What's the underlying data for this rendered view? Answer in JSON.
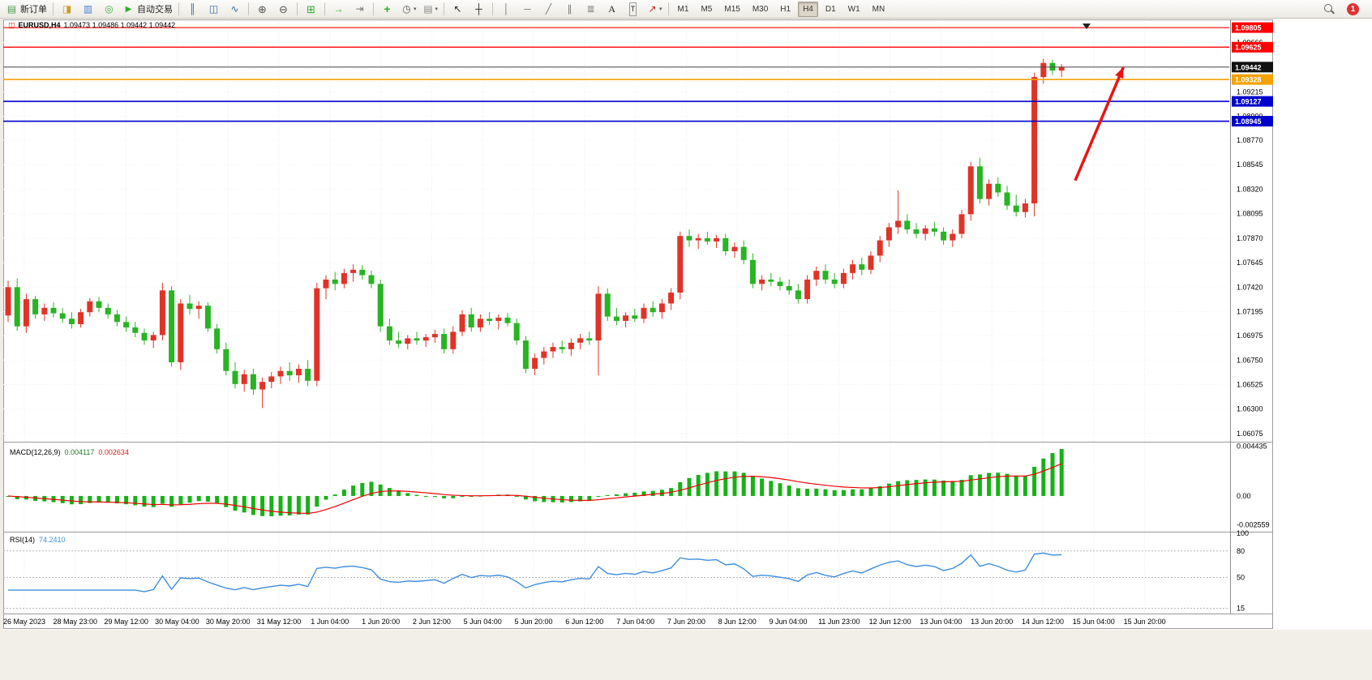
{
  "window": {
    "symbol_period": "EURUSD,H4",
    "ohlc": "1.09473 1.09486 1.09442 1.09442"
  },
  "toolbar": {
    "new_order_label": "新订单",
    "autotrade_label": "自动交易",
    "timeframes": [
      "M1",
      "M5",
      "M15",
      "M30",
      "H1",
      "H4",
      "D1",
      "W1",
      "MN"
    ],
    "active_timeframe": "H4",
    "notification_count": "1"
  },
  "chart_data": {
    "type": "candlestick",
    "symbol": "EURUSD",
    "period": "H4",
    "price_range": [
      1.06,
      1.0985
    ],
    "y_axis_labels": [
      "1.09666",
      "1.09440",
      "1.09215",
      "1.08990",
      "1.08770",
      "1.08545",
      "1.08320",
      "1.08095",
      "1.07870",
      "1.07645",
      "1.07420",
      "1.07195",
      "1.06975",
      "1.06750",
      "1.06525",
      "1.06300",
      "1.06075"
    ],
    "x_labels": [
      "26 May 2023",
      "28 May 23:00",
      "29 May 12:00",
      "30 May 04:00",
      "30 May 20:00",
      "31 May 12:00",
      "1 Jun 04:00",
      "1 Jun 20:00",
      "2 Jun 12:00",
      "5 Jun 04:00",
      "5 Jun 20:00",
      "6 Jun 12:00",
      "7 Jun 04:00",
      "7 Jun 20:00",
      "8 Jun 12:00",
      "9 Jun 04:00",
      "11 Jun 23:00",
      "12 Jun 12:00",
      "13 Jun 04:00",
      "13 Jun 20:00",
      "14 Jun 12:00",
      "15 Jun 04:00",
      "15 Jun 20:00"
    ],
    "candles": [
      [
        1.0716,
        1.0748,
        1.071,
        1.0742
      ],
      [
        1.0742,
        1.075,
        1.0702,
        1.0706
      ],
      [
        1.0706,
        1.0736,
        1.07,
        1.0731
      ],
      [
        1.0731,
        1.0734,
        1.0713,
        1.0717
      ],
      [
        1.0717,
        1.0727,
        1.0711,
        1.0723
      ],
      [
        1.0723,
        1.0728,
        1.0714,
        1.0718
      ],
      [
        1.0718,
        1.0723,
        1.0709,
        1.0713
      ],
      [
        1.0713,
        1.0719,
        1.0704,
        1.0708
      ],
      [
        1.0708,
        1.0722,
        1.0705,
        1.0719
      ],
      [
        1.0719,
        1.0732,
        1.0715,
        1.0729
      ],
      [
        1.0729,
        1.0733,
        1.0719,
        1.0723
      ],
      [
        1.0723,
        1.0727,
        1.0713,
        1.0717
      ],
      [
        1.0717,
        1.0721,
        1.0706,
        1.071
      ],
      [
        1.071,
        1.0715,
        1.0701,
        1.0705
      ],
      [
        1.0705,
        1.071,
        1.0696,
        1.07
      ],
      [
        1.07,
        1.0704,
        1.0689,
        1.0693
      ],
      [
        1.0693,
        1.0701,
        1.0686,
        1.0698
      ],
      [
        1.0698,
        1.0746,
        1.0693,
        1.0739
      ],
      [
        1.0739,
        1.0743,
        1.0669,
        1.0673
      ],
      [
        1.0673,
        1.0731,
        1.0666,
        1.0727
      ],
      [
        1.0727,
        1.0735,
        1.0717,
        1.0722
      ],
      [
        1.0722,
        1.0729,
        1.0713,
        1.0725
      ],
      [
        1.0725,
        1.0728,
        1.0701,
        1.0704
      ],
      [
        1.0704,
        1.0708,
        1.0681,
        1.0685
      ],
      [
        1.0685,
        1.0691,
        1.0661,
        1.0665
      ],
      [
        1.0665,
        1.0673,
        1.0649,
        1.0653
      ],
      [
        1.0653,
        1.0666,
        1.0646,
        1.0662
      ],
      [
        1.0662,
        1.0667,
        1.0643,
        1.0648
      ],
      [
        1.0648,
        1.0659,
        1.0631,
        1.0655
      ],
      [
        1.0655,
        1.0664,
        1.0649,
        1.066
      ],
      [
        1.066,
        1.0669,
        1.0653,
        1.0665
      ],
      [
        1.0665,
        1.0673,
        1.0656,
        1.0661
      ],
      [
        1.0661,
        1.0671,
        1.0654,
        1.0667
      ],
      [
        1.0667,
        1.0675,
        1.0651,
        1.0656
      ],
      [
        1.0656,
        1.0746,
        1.0651,
        1.0741
      ],
      [
        1.0741,
        1.0753,
        1.0731,
        1.0749
      ],
      [
        1.0749,
        1.0756,
        1.0739,
        1.0745
      ],
      [
        1.0745,
        1.0759,
        1.0741,
        1.0755
      ],
      [
        1.0755,
        1.0763,
        1.0747,
        1.0758
      ],
      [
        1.0758,
        1.0762,
        1.0749,
        1.0753
      ],
      [
        1.0753,
        1.0757,
        1.0741,
        1.0745
      ],
      [
        1.0745,
        1.0749,
        1.0701,
        1.0706
      ],
      [
        1.0706,
        1.0713,
        1.0689,
        1.0693
      ],
      [
        1.0693,
        1.0701,
        1.0686,
        1.069
      ],
      [
        1.069,
        1.0698,
        1.0685,
        1.0695
      ],
      [
        1.0695,
        1.0701,
        1.0689,
        1.0693
      ],
      [
        1.0693,
        1.0699,
        1.0687,
        1.0696
      ],
      [
        1.0696,
        1.0703,
        1.0691,
        1.0699
      ],
      [
        1.0699,
        1.0704,
        1.0681,
        1.0685
      ],
      [
        1.0685,
        1.0706,
        1.0681,
        1.0701
      ],
      [
        1.0701,
        1.0721,
        1.0697,
        1.0717
      ],
      [
        1.0717,
        1.0723,
        1.0701,
        1.0705
      ],
      [
        1.0705,
        1.0717,
        1.0701,
        1.0713
      ],
      [
        1.0713,
        1.0719,
        1.0707,
        1.0711
      ],
      [
        1.0711,
        1.0717,
        1.0703,
        1.0714
      ],
      [
        1.0714,
        1.0718,
        1.0706,
        1.0709
      ],
      [
        1.0709,
        1.0713,
        1.0689,
        1.0693
      ],
      [
        1.0693,
        1.0697,
        1.0663,
        1.0667
      ],
      [
        1.0667,
        1.0681,
        1.0661,
        1.0677
      ],
      [
        1.0677,
        1.0687,
        1.0671,
        1.0683
      ],
      [
        1.0683,
        1.0691,
        1.0677,
        1.0687
      ],
      [
        1.0687,
        1.0693,
        1.0681,
        1.0685
      ],
      [
        1.0685,
        1.0695,
        1.0679,
        1.0691
      ],
      [
        1.0691,
        1.0699,
        1.0685,
        1.0695
      ],
      [
        1.0695,
        1.0701,
        1.0689,
        1.0693
      ],
      [
        1.0693,
        1.0743,
        1.0661,
        1.0736
      ],
      [
        1.0736,
        1.0741,
        1.0711,
        1.0715
      ],
      [
        1.0715,
        1.0723,
        1.0707,
        1.0711
      ],
      [
        1.0711,
        1.0719,
        1.0705,
        1.0716
      ],
      [
        1.0716,
        1.0722,
        1.071,
        1.0713
      ],
      [
        1.0713,
        1.0727,
        1.0709,
        1.0723
      ],
      [
        1.0723,
        1.0729,
        1.0715,
        1.0719
      ],
      [
        1.0719,
        1.0731,
        1.0713,
        1.0727
      ],
      [
        1.0727,
        1.0741,
        1.0721,
        1.0737
      ],
      [
        1.0737,
        1.0793,
        1.0731,
        1.0789
      ],
      [
        1.0789,
        1.0795,
        1.0779,
        1.0785
      ],
      [
        1.0785,
        1.0791,
        1.0777,
        1.0787
      ],
      [
        1.0787,
        1.0793,
        1.0781,
        1.0784
      ],
      [
        1.0784,
        1.079,
        1.0778,
        1.0787
      ],
      [
        1.0787,
        1.0791,
        1.0771,
        1.0775
      ],
      [
        1.0775,
        1.0783,
        1.0769,
        1.0779
      ],
      [
        1.0779,
        1.0785,
        1.0763,
        1.0767
      ],
      [
        1.0767,
        1.0773,
        1.0741,
        1.0745
      ],
      [
        1.0745,
        1.0753,
        1.0739,
        1.0749
      ],
      [
        1.0749,
        1.0755,
        1.0743,
        1.0747
      ],
      [
        1.0747,
        1.0751,
        1.0739,
        1.0743
      ],
      [
        1.0743,
        1.0749,
        1.0735,
        1.0739
      ],
      [
        1.0739,
        1.0745,
        1.0727,
        1.0731
      ],
      [
        1.0731,
        1.0753,
        1.0727,
        1.0749
      ],
      [
        1.0749,
        1.0761,
        1.0743,
        1.0757
      ],
      [
        1.0757,
        1.0763,
        1.0745,
        1.0749
      ],
      [
        1.0749,
        1.0755,
        1.0741,
        1.0745
      ],
      [
        1.0745,
        1.0759,
        1.0741,
        1.0755
      ],
      [
        1.0755,
        1.0767,
        1.0749,
        1.0763
      ],
      [
        1.0763,
        1.0769,
        1.0753,
        1.0758
      ],
      [
        1.0758,
        1.0775,
        1.0754,
        1.0771
      ],
      [
        1.0771,
        1.0789,
        1.0765,
        1.0785
      ],
      [
        1.0785,
        1.0801,
        1.0779,
        1.0797
      ],
      [
        1.0797,
        1.0831,
        1.0791,
        1.0803
      ],
      [
        1.0803,
        1.0809,
        1.0791,
        1.0795
      ],
      [
        1.0795,
        1.0801,
        1.0787,
        1.0791
      ],
      [
        1.0791,
        1.0799,
        1.0785,
        1.0796
      ],
      [
        1.0796,
        1.0802,
        1.0789,
        1.0793
      ],
      [
        1.0793,
        1.0797,
        1.0781,
        1.0785
      ],
      [
        1.0785,
        1.0795,
        1.0779,
        1.0791
      ],
      [
        1.0791,
        1.0813,
        1.0787,
        1.0809
      ],
      [
        1.0809,
        1.0857,
        1.0803,
        1.0853
      ],
      [
        1.0853,
        1.0861,
        1.0819,
        1.0823
      ],
      [
        1.0823,
        1.0841,
        1.0817,
        1.0837
      ],
      [
        1.0837,
        1.0843,
        1.0825,
        1.0829
      ],
      [
        1.0829,
        1.0835,
        1.0813,
        1.0817
      ],
      [
        1.0817,
        1.0827,
        1.0807,
        1.0811
      ],
      [
        1.0811,
        1.0823,
        1.0806,
        1.0819
      ],
      [
        1.0819,
        1.0939,
        1.0807,
        1.0935
      ],
      [
        1.0935,
        1.0952,
        1.0929,
        1.0948
      ],
      [
        1.0948,
        1.0951,
        1.0937,
        1.0941
      ],
      [
        1.0941,
        1.0947,
        1.0935,
        1.09442
      ]
    ],
    "hlines": [
      {
        "price": 1.09805,
        "color": "#ff0000",
        "badge": "#ff0000",
        "label": "1.09805",
        "width": 1.2
      },
      {
        "price": 1.09625,
        "color": "#ff0000",
        "badge": "#ff0000",
        "label": "1.09625",
        "width": 1.4
      },
      {
        "price": 1.09442,
        "color": "#444444",
        "badge": "#111111",
        "label": "1.09442",
        "width": 1
      },
      {
        "price": 1.09328,
        "color": "#f5a100",
        "badge": "#f5a100",
        "label": "1.09328",
        "width": 1.6
      },
      {
        "price": 1.09127,
        "color": "#0000cc",
        "badge": "#0000cc",
        "label": "1.09127",
        "width": 1.6
      },
      {
        "price": 1.08945,
        "color": "#0000cc",
        "badge": "#0000cc",
        "label": "1.08945",
        "width": 1.6
      }
    ],
    "arrow": {
      "from_i": 117.5,
      "from_price": 1.084,
      "to_i": 122.8,
      "to_price": 1.0944,
      "color": "#ea1414"
    },
    "macd": {
      "label": "MACD(12,26,9)",
      "value1": "0.004117",
      "value2": "0.002634",
      "axis": [
        "0.004435",
        "0.00",
        "-0.002559"
      ],
      "range": [
        -0.0031,
        0.00475
      ]
    },
    "rsi": {
      "label": "RSI(14)",
      "value": "74.2410",
      "axis": [
        "100",
        "80",
        "50",
        "15"
      ],
      "levels": [
        80,
        50,
        15
      ],
      "range": [
        10,
        100
      ]
    },
    "colors": {
      "bull": "#e03327",
      "bear": "#28b423",
      "macd_bar": "#15b215",
      "macd_signal": "#ee0000",
      "rsi_line": "#3e8ede",
      "grid": "#ebebeb"
    }
  }
}
